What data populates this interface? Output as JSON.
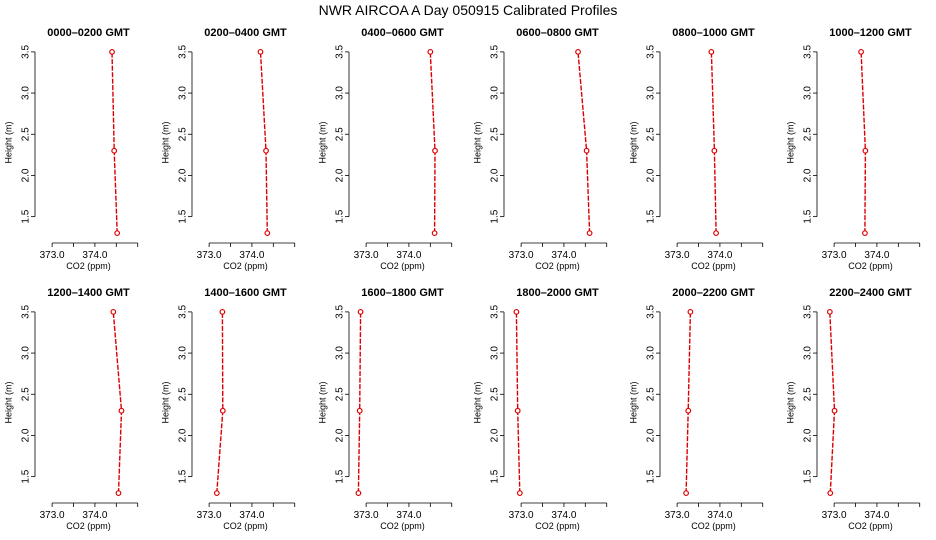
{
  "figure_title": "NWR AIRCOA A  Day 050915  Calibrated Profiles",
  "chart_data": [
    {
      "type": "line",
      "title": "0000–0200 GMT",
      "xlabel": "CO2 (ppm)",
      "ylabel": "Height (m)",
      "xlim": [
        372.6,
        375.1
      ],
      "ylim": [
        1.18,
        3.62
      ],
      "xticks": [
        "373.0",
        "374.0"
      ],
      "yticks": [
        "1.5",
        "2.0",
        "2.5",
        "3.0",
        "3.5"
      ],
      "series": [
        {
          "x": [
            374.52,
            374.45,
            374.4
          ],
          "y": [
            1.3,
            2.3,
            3.5
          ]
        }
      ]
    },
    {
      "type": "line",
      "title": "0200–0400 GMT",
      "xlabel": "CO2 (ppm)",
      "ylabel": "Height (m)",
      "xlim": [
        372.6,
        375.1
      ],
      "ylim": [
        1.18,
        3.62
      ],
      "xticks": [
        "373.0",
        "374.0"
      ],
      "yticks": [
        "1.5",
        "2.0",
        "2.5",
        "3.0",
        "3.5"
      ],
      "series": [
        {
          "x": [
            374.36,
            374.33,
            374.2
          ],
          "y": [
            1.3,
            2.3,
            3.5
          ]
        }
      ]
    },
    {
      "type": "line",
      "title": "0400–0600 GMT",
      "xlabel": "CO2 (ppm)",
      "ylabel": "Height (m)",
      "xlim": [
        372.6,
        375.1
      ],
      "ylim": [
        1.18,
        3.62
      ],
      "xticks": [
        "373.0",
        "374.0"
      ],
      "yticks": [
        "1.5",
        "2.0",
        "2.5",
        "3.0",
        "3.5"
      ],
      "series": [
        {
          "x": [
            374.6,
            374.61,
            374.5
          ],
          "y": [
            1.3,
            2.3,
            3.5
          ]
        }
      ]
    },
    {
      "type": "line",
      "title": "0600–0800 GMT",
      "xlabel": "CO2 (ppm)",
      "ylabel": "Height (m)",
      "xlim": [
        372.6,
        375.1
      ],
      "ylim": [
        1.18,
        3.62
      ],
      "xticks": [
        "373.0",
        "374.0"
      ],
      "yticks": [
        "1.5",
        "2.0",
        "2.5",
        "3.0",
        "3.5"
      ],
      "series": [
        {
          "x": [
            374.6,
            374.53,
            374.33
          ],
          "y": [
            1.3,
            2.3,
            3.5
          ]
        }
      ]
    },
    {
      "type": "line",
      "title": "0800–1000 GMT",
      "xlabel": "CO2 (ppm)",
      "ylabel": "Height (m)",
      "xlim": [
        372.6,
        375.1
      ],
      "ylim": [
        1.18,
        3.62
      ],
      "xticks": [
        "373.0",
        "374.0"
      ],
      "yticks": [
        "1.5",
        "2.0",
        "2.5",
        "3.0",
        "3.5"
      ],
      "series": [
        {
          "x": [
            373.91,
            373.87,
            373.8
          ],
          "y": [
            1.3,
            2.3,
            3.5
          ]
        }
      ]
    },
    {
      "type": "line",
      "title": "1000–1200 GMT",
      "xlabel": "CO2 (ppm)",
      "ylabel": "Height (m)",
      "xlim": [
        372.6,
        375.1
      ],
      "ylim": [
        1.18,
        3.62
      ],
      "xticks": [
        "373.0",
        "374.0"
      ],
      "yticks": [
        "1.5",
        "2.0",
        "2.5",
        "3.0",
        "3.5"
      ],
      "series": [
        {
          "x": [
            373.72,
            373.73,
            373.63
          ],
          "y": [
            1.3,
            2.3,
            3.5
          ]
        }
      ]
    },
    {
      "type": "line",
      "title": "1200–1400 GMT",
      "xlabel": "CO2 (ppm)",
      "ylabel": "Height (m)",
      "xlim": [
        372.6,
        375.1
      ],
      "ylim": [
        1.18,
        3.62
      ],
      "xticks": [
        "373.0",
        "374.0"
      ],
      "yticks": [
        "1.5",
        "2.0",
        "2.5",
        "3.0",
        "3.5"
      ],
      "series": [
        {
          "x": [
            374.55,
            374.62,
            374.43
          ],
          "y": [
            1.3,
            2.3,
            3.5
          ]
        }
      ]
    },
    {
      "type": "line",
      "title": "1400–1600 GMT",
      "xlabel": "CO2 (ppm)",
      "ylabel": "Height (m)",
      "xlim": [
        372.6,
        375.1
      ],
      "ylim": [
        1.18,
        3.62
      ],
      "xticks": [
        "373.0",
        "374.0"
      ],
      "yticks": [
        "1.5",
        "2.0",
        "2.5",
        "3.0",
        "3.5"
      ],
      "series": [
        {
          "x": [
            373.18,
            373.32,
            373.31
          ],
          "y": [
            1.3,
            2.3,
            3.5
          ]
        }
      ]
    },
    {
      "type": "line",
      "title": "1600–1800 GMT",
      "xlabel": "CO2 (ppm)",
      "ylabel": "Height (m)",
      "xlim": [
        372.6,
        375.1
      ],
      "ylim": [
        1.18,
        3.62
      ],
      "xticks": [
        "373.0",
        "374.0"
      ],
      "yticks": [
        "1.5",
        "2.0",
        "2.5",
        "3.0",
        "3.5"
      ],
      "series": [
        {
          "x": [
            372.82,
            372.85,
            372.87
          ],
          "y": [
            1.3,
            2.3,
            3.5
          ]
        }
      ]
    },
    {
      "type": "line",
      "title": "1800–2000 GMT",
      "xlabel": "CO2 (ppm)",
      "ylabel": "Height (m)",
      "xlim": [
        372.6,
        375.1
      ],
      "ylim": [
        1.18,
        3.62
      ],
      "xticks": [
        "373.0",
        "374.0"
      ],
      "yticks": [
        "1.5",
        "2.0",
        "2.5",
        "3.0",
        "3.5"
      ],
      "series": [
        {
          "x": [
            372.97,
            372.92,
            372.89
          ],
          "y": [
            1.3,
            2.3,
            3.5
          ]
        }
      ]
    },
    {
      "type": "line",
      "title": "2000–2200 GMT",
      "xlabel": "CO2 (ppm)",
      "ylabel": "Height (m)",
      "xlim": [
        372.6,
        375.1
      ],
      "ylim": [
        1.18,
        3.62
      ],
      "xticks": [
        "373.0",
        "374.0"
      ],
      "yticks": [
        "1.5",
        "2.0",
        "2.5",
        "3.0",
        "3.5"
      ],
      "series": [
        {
          "x": [
            373.21,
            373.26,
            373.31
          ],
          "y": [
            1.3,
            2.3,
            3.5
          ]
        }
      ]
    },
    {
      "type": "line",
      "title": "2200–2400 GMT",
      "xlabel": "CO2 (ppm)",
      "ylabel": "Height (m)",
      "xlim": [
        372.6,
        375.1
      ],
      "ylim": [
        1.18,
        3.62
      ],
      "xticks": [
        "373.0",
        "374.0"
      ],
      "yticks": [
        "1.5",
        "2.0",
        "2.5",
        "3.0",
        "3.5"
      ],
      "series": [
        {
          "x": [
            372.91,
            373.01,
            372.9
          ],
          "y": [
            1.3,
            2.3,
            3.5
          ]
        }
      ]
    }
  ],
  "colors": {
    "line": "#dd0000",
    "marker": "#dd0000",
    "axis": "#000000"
  }
}
